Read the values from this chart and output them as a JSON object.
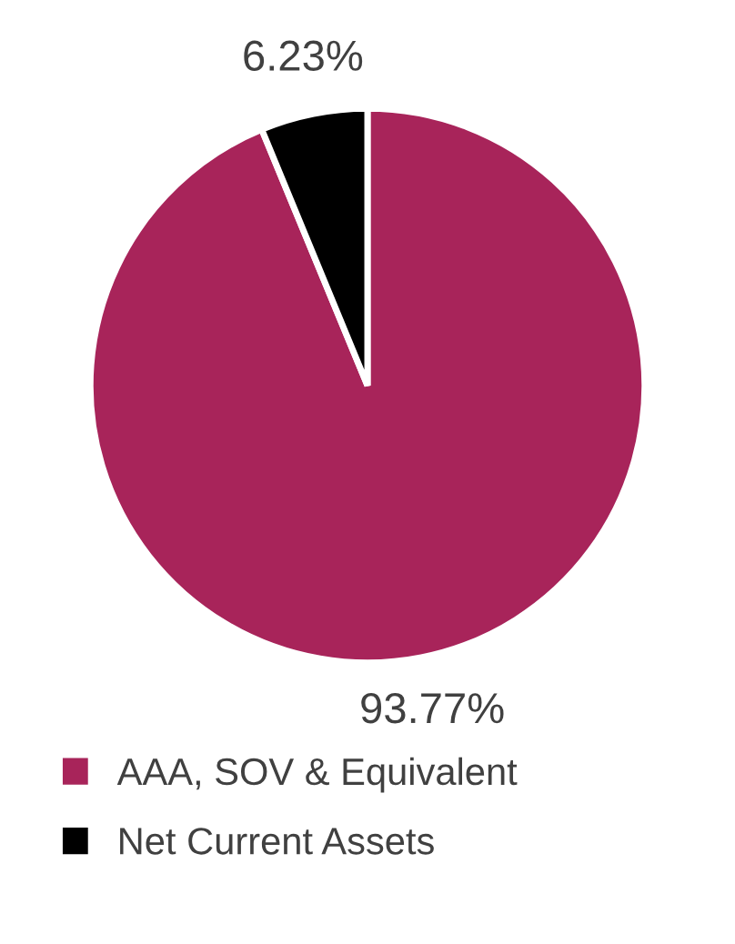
{
  "chart_data": {
    "type": "pie",
    "categories": [
      "AAA, SOV & Equivalent",
      "Net Current Assets"
    ],
    "values": [
      93.77,
      6.23
    ],
    "colors": [
      "#a8245a",
      "#000000"
    ],
    "value_labels": [
      "93.77%",
      "6.23%"
    ],
    "legend": "bottom"
  }
}
